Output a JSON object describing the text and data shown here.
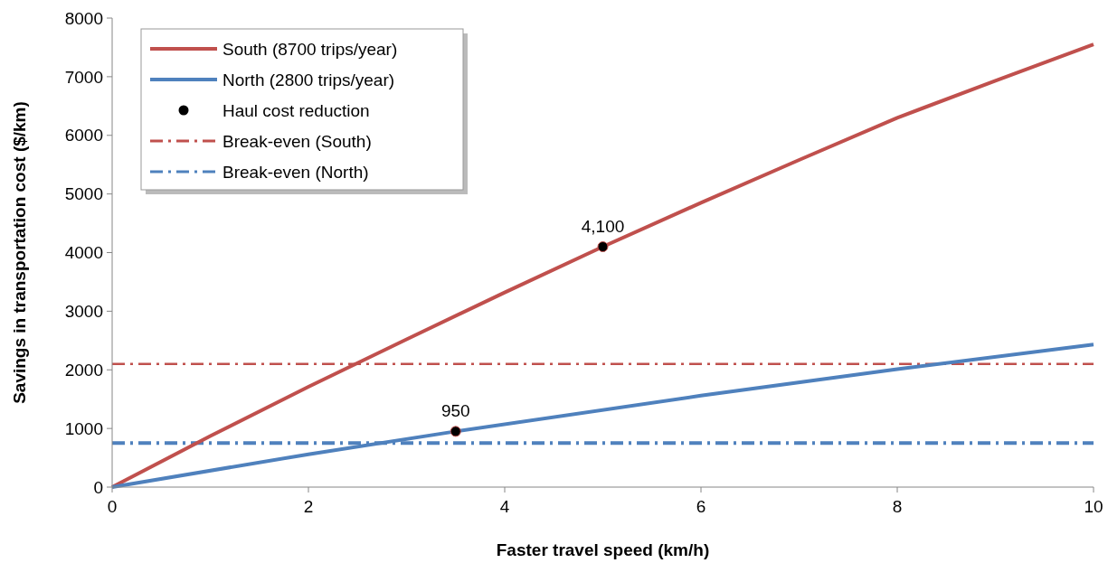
{
  "chart_data": {
    "type": "line",
    "xlabel": "Faster travel speed (km/h)",
    "ylabel": "Savings in transportation cost ($/km)",
    "xlim": [
      0,
      10
    ],
    "xticks": [
      0,
      2,
      4,
      6,
      8,
      10
    ],
    "ylim": [
      0,
      8000
    ],
    "yticks": [
      0,
      1000,
      2000,
      3000,
      4000,
      5000,
      6000,
      7000,
      8000
    ],
    "grid": false,
    "legend": "top left",
    "line_style": "solid",
    "series": [
      {
        "name": "South (8700 trips/year)",
        "color": "#c0504d",
        "x": [
          0,
          1,
          2,
          3,
          4,
          5,
          6,
          7,
          8,
          9,
          10
        ],
        "values": [
          0,
          870,
          1710,
          2520,
          3320,
          4100,
          4850,
          5580,
          6300,
          6930,
          7550
        ]
      },
      {
        "name": "North (2800 trips/year)",
        "color": "#4f81bd",
        "x": [
          0,
          2,
          3.5,
          6,
          8,
          10
        ],
        "values": [
          0,
          560,
          950,
          1560,
          2010,
          2430
        ]
      },
      {
        "name": "Haul cost reduction",
        "type": "scatter",
        "marker": "circle",
        "color": "#000000",
        "x": [
          5,
          3.5
        ],
        "values": [
          4100,
          950
        ],
        "value_labels": [
          "4,100",
          "950"
        ]
      }
    ],
    "ref_lines": [
      {
        "axis": "y",
        "value": 2100,
        "label": "Break-even (South)",
        "color": "#c0504d",
        "line_style": "dashed"
      },
      {
        "axis": "y",
        "value": 750,
        "label": "Break-even (North)",
        "color": "#4f81bd",
        "line_style": "dashed"
      }
    ]
  }
}
